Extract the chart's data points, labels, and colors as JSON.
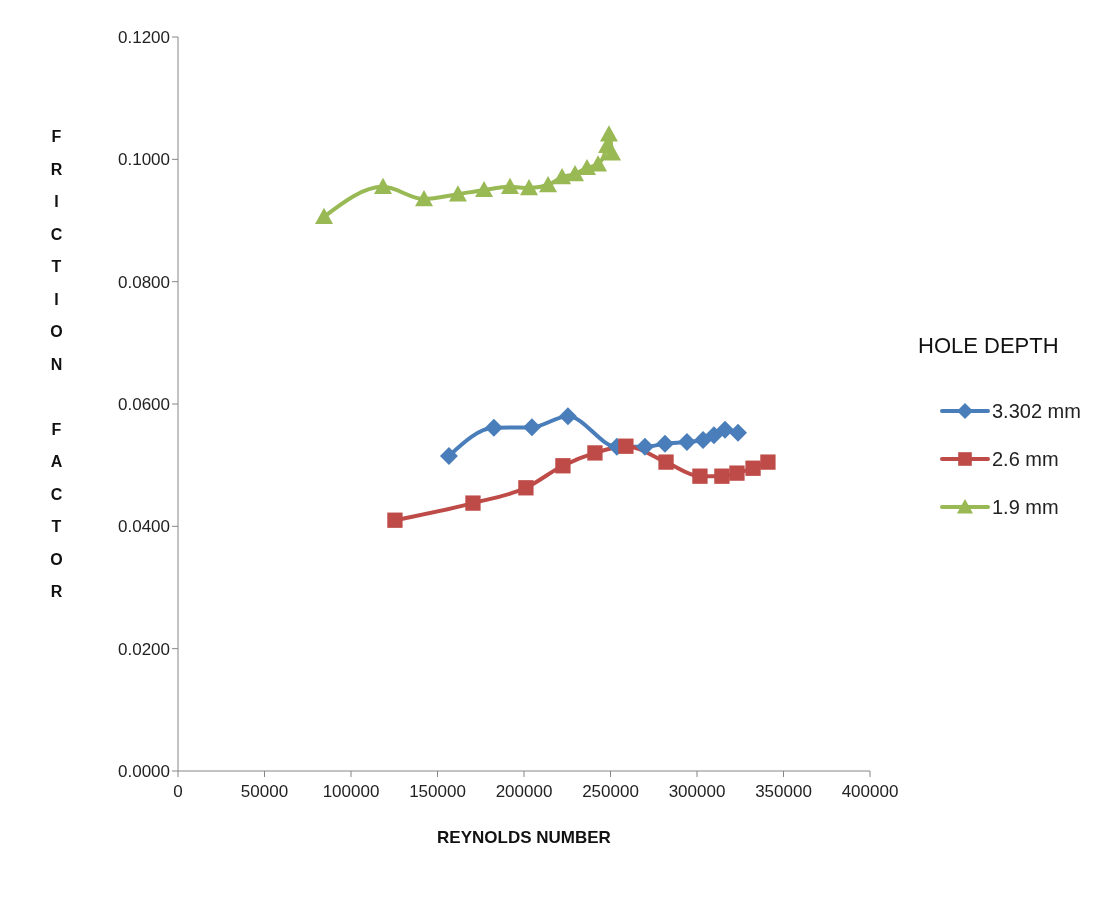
{
  "chart_data": {
    "type": "line",
    "xlabel": "REYNOLDS NUMBER",
    "ylabel": "FRICTION FACTOR",
    "legend_title": "HOLE DEPTH",
    "legend": "right",
    "grid": false,
    "xlim": [
      0,
      400000
    ],
    "xticks": [
      0,
      50000,
      100000,
      150000,
      200000,
      250000,
      300000,
      350000,
      400000
    ],
    "ylim": [
      0,
      0.12
    ],
    "yticks": [
      {
        "value": 0,
        "label": "0.0000"
      },
      {
        "value": 0.02,
        "label": "0.0200"
      },
      {
        "value": 0.04,
        "label": "0.0400"
      },
      {
        "value": 0.06,
        "label": "0.0600"
      },
      {
        "value": 0.08,
        "label": "0.0800"
      },
      {
        "value": 0.1,
        "label": "0.1000"
      },
      {
        "value": 0.12,
        "label": "0.1200"
      }
    ],
    "series": [
      {
        "name": "3.302 mm",
        "color": "#4a7ebb",
        "marker": "diamond",
        "x": [
          156600,
          182600,
          204600,
          225400,
          253700,
          269900,
          281500,
          294200,
          303500,
          309800,
          316200,
          323700
        ],
        "values": [
          0.0515,
          0.0561,
          0.0562,
          0.058,
          0.053,
          0.053,
          0.0535,
          0.0538,
          0.0541,
          0.0549,
          0.0558,
          0.0553
        ]
      },
      {
        "name": "2.6 mm",
        "color": "#be4b48",
        "marker": "square",
        "x": [
          125400,
          170500,
          201100,
          222500,
          241000,
          258900,
          282100,
          301700,
          314400,
          323100,
          332400,
          341000
        ],
        "values": [
          0.041,
          0.0438,
          0.0463,
          0.0499,
          0.052,
          0.0531,
          0.0505,
          0.0482,
          0.0482,
          0.0487,
          0.0495,
          0.0505
        ]
      },
      {
        "name": "1.9 mm",
        "color": "#98b954",
        "marker": "triangle",
        "x": [
          84400,
          118500,
          142200,
          161800,
          176900,
          191900,
          202900,
          213900,
          222000,
          229500,
          236400,
          242800,
          248000,
          249100,
          250900
        ],
        "values": [
          0.0906,
          0.0955,
          0.0935,
          0.0943,
          0.095,
          0.0955,
          0.0953,
          0.0958,
          0.0971,
          0.0976,
          0.0986,
          0.0992,
          0.1022,
          0.1041,
          0.101
        ]
      }
    ]
  }
}
